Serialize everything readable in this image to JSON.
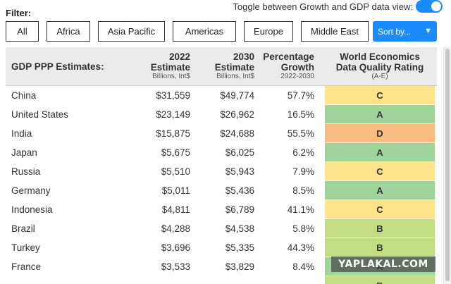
{
  "filter": {
    "label": "Filter:",
    "toggle_label": "Toggle between Growth and GDP data view:",
    "toggle_on": true,
    "buttons": [
      "All",
      "Africa",
      "Asia Pacific",
      "Americas",
      "Europe",
      "Middle East"
    ],
    "sort_label": "Sort by...",
    "accent_color": "#1a8cff"
  },
  "table": {
    "headers": {
      "country": "GDP PPP Estimates:",
      "est2022_title": "2022",
      "est2022_title2": "Estimate",
      "est2022_sub": "Billions, Int$",
      "est2030_title": "2030",
      "est2030_title2": "Estimate",
      "est2030_sub": "Billions, Int$",
      "growth_title": "Percentage",
      "growth_title2": "Growth",
      "growth_sub": "2022-2030",
      "rating_title": "World Economics",
      "rating_title2": "Data Quality Rating",
      "rating_sub": "(A-E)"
    },
    "rating_colors": {
      "A": "#9fd59a",
      "B": "#c3dd83",
      "C": "#ffe38a",
      "D": "#fcbc7f"
    },
    "rows": [
      {
        "country": "China",
        "est2022": "$31,559",
        "est2030": "$49,774",
        "growth": "57.7%",
        "rating": "C"
      },
      {
        "country": "United States",
        "est2022": "$23,149",
        "est2030": "$26,962",
        "growth": "16.5%",
        "rating": "A"
      },
      {
        "country": "India",
        "est2022": "$15,875",
        "est2030": "$24,688",
        "growth": "55.5%",
        "rating": "D"
      },
      {
        "country": "Japan",
        "est2022": "$5,675",
        "est2030": "$6,025",
        "growth": "6.2%",
        "rating": "A"
      },
      {
        "country": "Russia",
        "est2022": "$5,510",
        "est2030": "$5,943",
        "growth": "7.9%",
        "rating": "C"
      },
      {
        "country": "Germany",
        "est2022": "$5,011",
        "est2030": "$5,436",
        "growth": "8.5%",
        "rating": "A"
      },
      {
        "country": "Indonesia",
        "est2022": "$4,811",
        "est2030": "$6,789",
        "growth": "41.1%",
        "rating": "C"
      },
      {
        "country": "Brazil",
        "est2022": "$4,288",
        "est2030": "$4,538",
        "growth": "5.8%",
        "rating": "B"
      },
      {
        "country": "Turkey",
        "est2022": "$3,696",
        "est2030": "$5,335",
        "growth": "44.3%",
        "rating": "B"
      },
      {
        "country": "France",
        "est2022": "$3,533",
        "est2030": "$3,829",
        "growth": "8.4%",
        "rating": "A"
      },
      {
        "country": "",
        "est2022": "",
        "est2030": "",
        "growth": "",
        "rating": "B"
      }
    ]
  },
  "watermark": "YAPLAKAL.COM"
}
